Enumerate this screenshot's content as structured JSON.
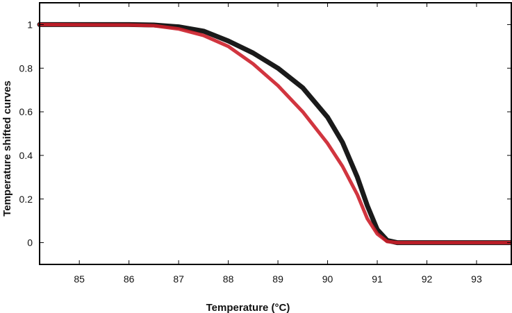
{
  "chart_data": {
    "type": "line",
    "title": "",
    "xlabel": "Temperature (°C)",
    "ylabel": "Temperature shifted curves",
    "xlim": [
      84.2,
      93.7
    ],
    "ylim": [
      -0.1,
      1.1
    ],
    "xticks": [
      "85",
      "86",
      "87",
      "88",
      "89",
      "90",
      "91",
      "92",
      "93"
    ],
    "yticks": [
      "0",
      "0.2",
      "0.4",
      "0.6",
      "0.8",
      "1"
    ],
    "xtick_values": [
      85,
      86,
      87,
      88,
      89,
      90,
      91,
      92,
      93
    ],
    "ytick_values": [
      0,
      0.2,
      0.4,
      0.6,
      0.8,
      1
    ],
    "grid": false,
    "legend": "none",
    "series": [
      {
        "color": "#1a1a1a",
        "x": [
          84.2,
          86.0,
          86.5,
          87.0,
          87.5,
          88.0,
          88.5,
          89.0,
          89.5,
          90.0,
          90.3,
          90.6,
          90.8,
          91.0,
          91.2,
          91.4,
          93.7
        ],
        "y": [
          1.0,
          1.0,
          0.998,
          0.99,
          0.97,
          0.925,
          0.87,
          0.8,
          0.71,
          0.575,
          0.46,
          0.3,
          0.17,
          0.06,
          0.01,
          0.0,
          0.0
        ]
      },
      {
        "color": "#cc1f2a",
        "x": [
          84.2,
          86.0,
          86.5,
          87.0,
          87.5,
          88.0,
          88.5,
          89.0,
          89.5,
          90.0,
          90.3,
          90.6,
          90.8,
          91.0,
          91.2,
          91.4,
          93.7
        ],
        "y": [
          1.0,
          0.998,
          0.995,
          0.98,
          0.95,
          0.9,
          0.82,
          0.72,
          0.6,
          0.455,
          0.35,
          0.22,
          0.11,
          0.04,
          0.005,
          0.0,
          0.0
        ]
      }
    ]
  }
}
